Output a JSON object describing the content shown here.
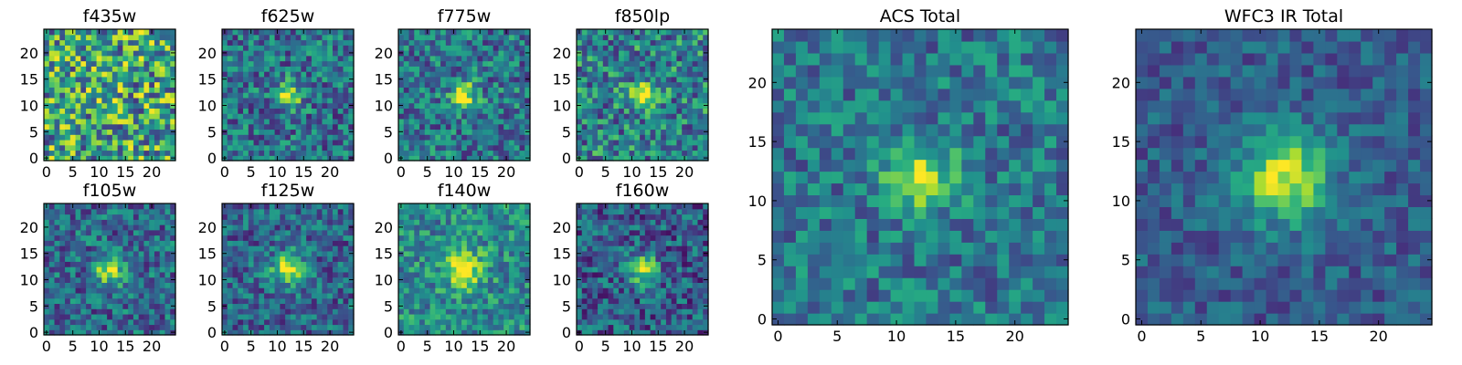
{
  "chart_data": [
    {
      "type": "heatmap",
      "title": "f435w",
      "xticks": [
        "0",
        "5",
        "10",
        "15",
        "20"
      ],
      "yticks": [
        "0",
        "5",
        "10",
        "15",
        "20"
      ],
      "xlim": [
        0,
        25
      ],
      "ylim": [
        0,
        25
      ],
      "grid_size": [
        25,
        25
      ],
      "source_center": [
        12,
        12
      ],
      "colormap": "viridis"
    },
    {
      "type": "heatmap",
      "title": "f625w",
      "xticks": [
        "0",
        "5",
        "10",
        "15",
        "20"
      ],
      "yticks": [
        "0",
        "5",
        "10",
        "15",
        "20"
      ],
      "xlim": [
        0,
        25
      ],
      "ylim": [
        0,
        25
      ],
      "grid_size": [
        25,
        25
      ],
      "source_center": [
        12,
        12
      ],
      "colormap": "viridis"
    },
    {
      "type": "heatmap",
      "title": "f775w",
      "xticks": [
        "0",
        "5",
        "10",
        "15",
        "20"
      ],
      "yticks": [
        "0",
        "5",
        "10",
        "15",
        "20"
      ],
      "xlim": [
        0,
        25
      ],
      "ylim": [
        0,
        25
      ],
      "grid_size": [
        25,
        25
      ],
      "source_center": [
        12,
        12
      ],
      "colormap": "viridis"
    },
    {
      "type": "heatmap",
      "title": "f850lp",
      "xticks": [
        "0",
        "5",
        "10",
        "15",
        "20"
      ],
      "yticks": [
        "0",
        "5",
        "10",
        "15",
        "20"
      ],
      "xlim": [
        0,
        25
      ],
      "ylim": [
        0,
        25
      ],
      "grid_size": [
        25,
        25
      ],
      "source_center": [
        12,
        12
      ],
      "colormap": "viridis"
    },
    {
      "type": "heatmap",
      "title": "f105w",
      "xticks": [
        "0",
        "5",
        "10",
        "15",
        "20"
      ],
      "yticks": [
        "0",
        "5",
        "10",
        "15",
        "20"
      ],
      "xlim": [
        0,
        25
      ],
      "ylim": [
        0,
        25
      ],
      "grid_size": [
        25,
        25
      ],
      "source_center": [
        12,
        12
      ],
      "colormap": "viridis"
    },
    {
      "type": "heatmap",
      "title": "f125w",
      "xticks": [
        "0",
        "5",
        "10",
        "15",
        "20"
      ],
      "yticks": [
        "0",
        "5",
        "10",
        "15",
        "20"
      ],
      "xlim": [
        0,
        25
      ],
      "ylim": [
        0,
        25
      ],
      "grid_size": [
        25,
        25
      ],
      "source_center": [
        12,
        12
      ],
      "colormap": "viridis"
    },
    {
      "type": "heatmap",
      "title": "f140w",
      "xticks": [
        "0",
        "5",
        "10",
        "15",
        "20"
      ],
      "yticks": [
        "0",
        "5",
        "10",
        "15",
        "20"
      ],
      "xlim": [
        0,
        25
      ],
      "ylim": [
        0,
        25
      ],
      "grid_size": [
        25,
        25
      ],
      "source_center": [
        12,
        12
      ],
      "colormap": "viridis"
    },
    {
      "type": "heatmap",
      "title": "f160w",
      "xticks": [
        "0",
        "5",
        "10",
        "15",
        "20"
      ],
      "yticks": [
        "0",
        "5",
        "10",
        "15",
        "20"
      ],
      "xlim": [
        0,
        25
      ],
      "ylim": [
        0,
        25
      ],
      "grid_size": [
        25,
        25
      ],
      "source_center": [
        12,
        12
      ],
      "colormap": "viridis"
    },
    {
      "type": "heatmap",
      "title": "ACS Total",
      "xticks": [
        "0",
        "5",
        "10",
        "15",
        "20"
      ],
      "yticks": [
        "0",
        "5",
        "10",
        "15",
        "20"
      ],
      "xlim": [
        0,
        25
      ],
      "ylim": [
        0,
        25
      ],
      "grid_size": [
        25,
        25
      ],
      "source_center": [
        12,
        12
      ],
      "colormap": "viridis"
    },
    {
      "type": "heatmap",
      "title": "WFC3 IR Total",
      "xticks": [
        "0",
        "5",
        "10",
        "15",
        "20"
      ],
      "yticks": [
        "0",
        "5",
        "10",
        "15",
        "20"
      ],
      "xlim": [
        0,
        25
      ],
      "ylim": [
        0,
        25
      ],
      "grid_size": [
        25,
        25
      ],
      "source_center": [
        12,
        12
      ],
      "colormap": "viridis"
    }
  ]
}
